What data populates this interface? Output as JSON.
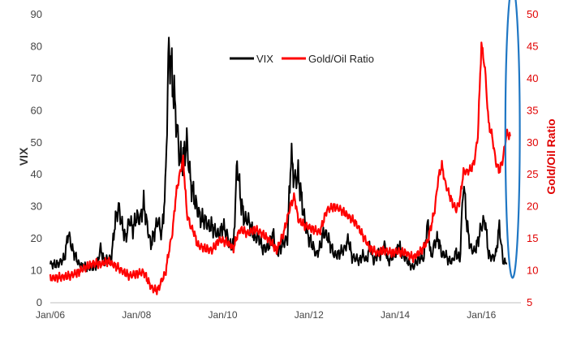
{
  "chart_data": {
    "type": "line",
    "title": "",
    "xlabel": "",
    "ylabel": "VIX",
    "y2label": "Gold/Oil Ratio",
    "ylim": [
      0,
      90
    ],
    "y2lim": [
      5,
      50
    ],
    "xlim": [
      "2006-01",
      "2016-12"
    ],
    "x_ticks": [
      "Jan/06",
      "Jan/08",
      "Jan/10",
      "Jan/12",
      "Jan/14",
      "Jan/16"
    ],
    "y_ticks": [
      "0",
      "10",
      "20",
      "30",
      "40",
      "50",
      "60",
      "70",
      "80",
      "90"
    ],
    "y2_ticks": [
      "5",
      "10",
      "15",
      "20",
      "25",
      "30",
      "35",
      "40",
      "45",
      "50"
    ],
    "grid": false,
    "legend_position": "top-center",
    "series": [
      {
        "name": "VIX",
        "axis": "left",
        "color": "#000000",
        "points": [
          [
            "2006-01",
            12
          ],
          [
            "2006-03",
            12
          ],
          [
            "2006-05",
            14
          ],
          [
            "2006-06",
            22
          ],
          [
            "2006-07",
            17
          ],
          [
            "2006-09",
            12
          ],
          [
            "2006-11",
            11
          ],
          [
            "2007-01",
            11
          ],
          [
            "2007-02",
            12
          ],
          [
            "2007-03",
            17
          ],
          [
            "2007-04",
            13
          ],
          [
            "2007-06",
            14
          ],
          [
            "2007-07",
            25
          ],
          [
            "2007-08",
            30
          ],
          [
            "2007-09",
            24
          ],
          [
            "2007-10",
            20
          ],
          [
            "2007-11",
            26
          ],
          [
            "2007-12",
            23
          ],
          [
            "2008-01",
            27
          ],
          [
            "2008-02",
            26
          ],
          [
            "2008-03",
            31
          ],
          [
            "2008-04",
            24
          ],
          [
            "2008-05",
            18
          ],
          [
            "2008-06",
            22
          ],
          [
            "2008-07",
            26
          ],
          [
            "2008-08",
            21
          ],
          [
            "2008-09",
            35
          ],
          [
            "2008-10",
            80
          ],
          [
            "2008-11",
            70
          ],
          [
            "2008-12",
            58
          ],
          [
            "2009-01",
            45
          ],
          [
            "2009-02",
            45
          ],
          [
            "2009-03",
            50
          ],
          [
            "2009-04",
            38
          ],
          [
            "2009-05",
            33
          ],
          [
            "2009-06",
            29
          ],
          [
            "2009-07",
            26
          ],
          [
            "2009-08",
            26
          ],
          [
            "2009-09",
            24
          ],
          [
            "2009-10",
            24
          ],
          [
            "2009-11",
            22
          ],
          [
            "2009-12",
            21
          ],
          [
            "2010-01",
            24
          ],
          [
            "2010-02",
            22
          ],
          [
            "2010-03",
            18
          ],
          [
            "2010-04",
            18
          ],
          [
            "2010-05",
            44
          ],
          [
            "2010-06",
            32
          ],
          [
            "2010-07",
            26
          ],
          [
            "2010-08",
            26
          ],
          [
            "2010-09",
            23
          ],
          [
            "2010-10",
            20
          ],
          [
            "2010-11",
            21
          ],
          [
            "2010-12",
            17
          ],
          [
            "2011-01",
            17
          ],
          [
            "2011-02",
            18
          ],
          [
            "2011-03",
            22
          ],
          [
            "2011-04",
            15
          ],
          [
            "2011-05",
            17
          ],
          [
            "2011-06",
            19
          ],
          [
            "2011-07",
            20
          ],
          [
            "2011-08",
            46
          ],
          [
            "2011-09",
            38
          ],
          [
            "2011-10",
            40
          ],
          [
            "2011-11",
            32
          ],
          [
            "2011-12",
            24
          ],
          [
            "2012-01",
            20
          ],
          [
            "2012-02",
            18
          ],
          [
            "2012-03",
            15
          ],
          [
            "2012-04",
            17
          ],
          [
            "2012-05",
            22
          ],
          [
            "2012-06",
            21
          ],
          [
            "2012-07",
            18
          ],
          [
            "2012-08",
            15
          ],
          [
            "2012-09",
            15
          ],
          [
            "2012-10",
            16
          ],
          [
            "2012-11",
            17
          ],
          [
            "2012-12",
            20
          ],
          [
            "2013-01",
            14
          ],
          [
            "2013-02",
            14
          ],
          [
            "2013-03",
            13
          ],
          [
            "2013-04",
            15
          ],
          [
            "2013-05",
            13
          ],
          [
            "2013-06",
            18
          ],
          [
            "2013-07",
            13
          ],
          [
            "2013-08",
            15
          ],
          [
            "2013-09",
            15
          ],
          [
            "2013-10",
            18
          ],
          [
            "2013-11",
            13
          ],
          [
            "2013-12",
            14
          ],
          [
            "2014-01",
            15
          ],
          [
            "2014-02",
            18
          ],
          [
            "2014-03",
            15
          ],
          [
            "2014-04",
            14
          ],
          [
            "2014-05",
            12
          ],
          [
            "2014-06",
            11
          ],
          [
            "2014-07",
            13
          ],
          [
            "2014-08",
            14
          ],
          [
            "2014-09",
            14
          ],
          [
            "2014-10",
            25
          ],
          [
            "2014-11",
            14
          ],
          [
            "2014-12",
            19
          ],
          [
            "2015-01",
            20
          ],
          [
            "2015-02",
            15
          ],
          [
            "2015-03",
            15
          ],
          [
            "2015-04",
            13
          ],
          [
            "2015-05",
            13
          ],
          [
            "2015-06",
            16
          ],
          [
            "2015-07",
            13
          ],
          [
            "2015-08",
            38
          ],
          [
            "2015-09",
            24
          ],
          [
            "2015-10",
            17
          ],
          [
            "2015-11",
            16
          ],
          [
            "2015-12",
            19
          ],
          [
            "2016-01",
            24
          ],
          [
            "2016-02",
            26
          ],
          [
            "2016-03",
            15
          ],
          [
            "2016-04",
            14
          ],
          [
            "2016-05",
            15
          ],
          [
            "2016-06",
            24
          ],
          [
            "2016-07",
            13
          ],
          [
            "2016-08",
            12
          ]
        ]
      },
      {
        "name": "Gold/Oil Ratio",
        "axis": "right",
        "color": "#ff0000",
        "points": [
          [
            "2006-01",
            8.8
          ],
          [
            "2006-04",
            9.0
          ],
          [
            "2006-07",
            9.3
          ],
          [
            "2006-09",
            9.8
          ],
          [
            "2006-10",
            10.3
          ],
          [
            "2007-01",
            11.2
          ],
          [
            "2007-03",
            11.0
          ],
          [
            "2007-05",
            11.5
          ],
          [
            "2007-07",
            10.8
          ],
          [
            "2007-09",
            10.0
          ],
          [
            "2007-11",
            9.2
          ],
          [
            "2008-01",
            9.5
          ],
          [
            "2008-03",
            9.8
          ],
          [
            "2008-05",
            7.5
          ],
          [
            "2008-06",
            7.0
          ],
          [
            "2008-07",
            7.0
          ],
          [
            "2008-08",
            8.5
          ],
          [
            "2008-09",
            9.5
          ],
          [
            "2008-10",
            13.0
          ],
          [
            "2008-11",
            16.0
          ],
          [
            "2008-12",
            22.0
          ],
          [
            "2009-01",
            25.0
          ],
          [
            "2009-02",
            27.5
          ],
          [
            "2009-03",
            19.0
          ],
          [
            "2009-04",
            17.0
          ],
          [
            "2009-05",
            16.0
          ],
          [
            "2009-06",
            14.0
          ],
          [
            "2009-08",
            13.5
          ],
          [
            "2009-10",
            13.2
          ],
          [
            "2009-12",
            14.8
          ],
          [
            "2010-02",
            14.5
          ],
          [
            "2010-04",
            13.5
          ],
          [
            "2010-05",
            15.5
          ],
          [
            "2010-06",
            16.5
          ],
          [
            "2010-08",
            15.8
          ],
          [
            "2010-10",
            16.5
          ],
          [
            "2010-12",
            15.8
          ],
          [
            "2011-02",
            14.8
          ],
          [
            "2011-04",
            13.2
          ],
          [
            "2011-06",
            16.0
          ],
          [
            "2011-08",
            20.5
          ],
          [
            "2011-09",
            21.5
          ],
          [
            "2011-10",
            18.0
          ],
          [
            "2011-12",
            17.0
          ],
          [
            "2012-02",
            16.5
          ],
          [
            "2012-04",
            16.0
          ],
          [
            "2012-06",
            19.5
          ],
          [
            "2012-08",
            20.0
          ],
          [
            "2012-10",
            19.5
          ],
          [
            "2012-12",
            18.5
          ],
          [
            "2013-02",
            17.5
          ],
          [
            "2013-04",
            15.5
          ],
          [
            "2013-06",
            13.5
          ],
          [
            "2013-08",
            12.8
          ],
          [
            "2013-10",
            13.2
          ],
          [
            "2013-12",
            12.8
          ],
          [
            "2014-02",
            13.0
          ],
          [
            "2014-04",
            12.8
          ],
          [
            "2014-06",
            12.0
          ],
          [
            "2014-08",
            13.0
          ],
          [
            "2014-10",
            14.5
          ],
          [
            "2014-12",
            19.5
          ],
          [
            "2015-01",
            24.5
          ],
          [
            "2015-02",
            26.5
          ],
          [
            "2015-03",
            23.5
          ],
          [
            "2015-04",
            22.0
          ],
          [
            "2015-05",
            20.5
          ],
          [
            "2015-06",
            19.5
          ],
          [
            "2015-07",
            21.0
          ],
          [
            "2015-08",
            25.5
          ],
          [
            "2015-09",
            25.5
          ],
          [
            "2015-10",
            25.8
          ],
          [
            "2015-11",
            27.0
          ],
          [
            "2015-12",
            31.0
          ],
          [
            "2016-01",
            45.5
          ],
          [
            "2016-02",
            41.5
          ],
          [
            "2016-03",
            33.0
          ],
          [
            "2016-04",
            31.0
          ],
          [
            "2016-05",
            27.0
          ],
          [
            "2016-06",
            25.5
          ],
          [
            "2016-07",
            27.5
          ],
          [
            "2016-08",
            31.5
          ],
          [
            "2016-09",
            31.0
          ]
        ]
      }
    ],
    "annotations": [
      {
        "type": "ellipse",
        "color": "#1f77c4",
        "x_center": "2016-09",
        "y_center": 45,
        "x_halfwidth_months": 2,
        "y_halfrange": 57
      }
    ]
  }
}
